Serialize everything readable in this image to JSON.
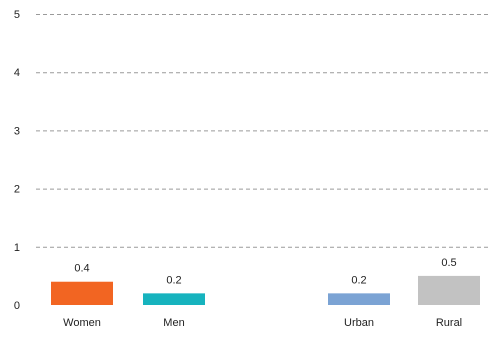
{
  "chart_data": {
    "type": "bar",
    "categories": [
      "Women",
      "Men",
      "Urban",
      "Rural"
    ],
    "values": [
      0.4,
      0.2,
      0.2,
      0.5
    ],
    "value_labels": [
      "0.4",
      "0.2",
      "0.2",
      "0.5"
    ],
    "colors": [
      "#f26522",
      "#16b3be",
      "#7ba3d4",
      "#c2c2c2"
    ],
    "groups": [
      [
        "Women",
        "Men"
      ],
      [
        "Urban",
        "Rural"
      ]
    ],
    "ylim": [
      0,
      5
    ],
    "yticks": [
      0,
      1,
      2,
      3,
      4,
      5
    ],
    "grid": true,
    "grid_style": "dashed",
    "legend": "none",
    "title": "",
    "xlabel": "",
    "ylabel": ""
  }
}
